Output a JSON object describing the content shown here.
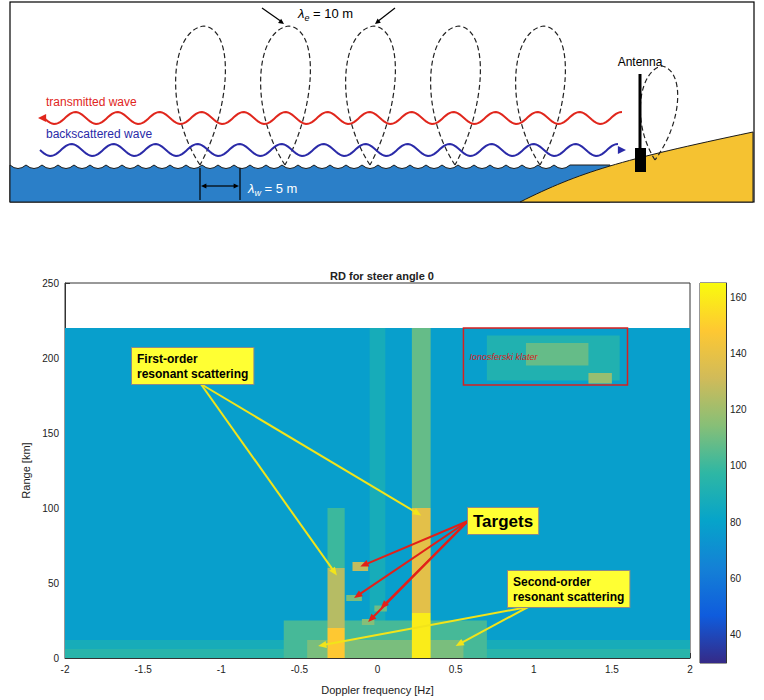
{
  "diagram": {
    "transmitted": "transmitted wave",
    "backscattered": "backscattered wave",
    "antenna": "Antenna",
    "wavelengths": [
      {
        "symbol": "λ",
        "subscript": "e",
        "operator": "=",
        "value": 10,
        "unit": "m"
      },
      {
        "symbol": "λ",
        "subscript": "w",
        "operator": "=",
        "value": 5,
        "unit": "m"
      }
    ]
  },
  "chart_data": {
    "type": "heatmap",
    "title": "RD for steer angle 0",
    "x_label": "Doppler frequency [Hz]",
    "y_label": "Range [km]",
    "xlim": [
      -2,
      2
    ],
    "xticks": [
      -2,
      -1.5,
      -1,
      -0.5,
      0,
      0.5,
      1,
      1.5,
      2
    ],
    "ylim": [
      0,
      250
    ],
    "yticks": [
      0,
      50,
      100,
      150,
      200,
      250
    ],
    "grid": false,
    "colorbar": {
      "range": [
        30,
        165
      ],
      "ticks": [
        40,
        60,
        80,
        100,
        120,
        140,
        160
      ]
    },
    "cells": [
      {
        "x": [
          -2,
          2
        ],
        "y": [
          0,
          220
        ],
        "value": 78
      },
      {
        "x": [
          -2,
          2
        ],
        "y": [
          0,
          6
        ],
        "value": 95
      },
      {
        "x": [
          -2,
          2
        ],
        "y": [
          6,
          12
        ],
        "value": 88
      },
      {
        "x": [
          -0.05,
          0.05
        ],
        "y": [
          0,
          220
        ],
        "value": 88
      },
      {
        "x": [
          -0.6,
          0.7
        ],
        "y": [
          0,
          25
        ],
        "value": 102
      },
      {
        "x": [
          -0.45,
          0.55
        ],
        "y": [
          0,
          12
        ],
        "value": 112
      },
      {
        "x": [
          0.22,
          0.34
        ],
        "y": [
          100,
          220
        ],
        "value": 108
      },
      {
        "x": [
          0.22,
          0.34
        ],
        "y": [
          30,
          100
        ],
        "value": 138
      },
      {
        "x": [
          0.22,
          0.34
        ],
        "y": [
          0,
          30
        ],
        "value": 160
      },
      {
        "x": [
          -0.32,
          -0.21
        ],
        "y": [
          60,
          100
        ],
        "value": 100
      },
      {
        "x": [
          -0.32,
          -0.21
        ],
        "y": [
          20,
          60
        ],
        "value": 125
      },
      {
        "x": [
          -0.32,
          -0.21
        ],
        "y": [
          0,
          20
        ],
        "value": 148
      },
      {
        "x": [
          -0.16,
          -0.06
        ],
        "y": [
          58,
          64
        ],
        "value": 128
      },
      {
        "x": [
          -0.2,
          -0.1
        ],
        "y": [
          38,
          42
        ],
        "value": 112
      },
      {
        "x": [
          -0.02,
          0.06
        ],
        "y": [
          31,
          35
        ],
        "value": 110
      },
      {
        "x": [
          -0.1,
          -0.02
        ],
        "y": [
          22,
          26
        ],
        "value": 114
      },
      {
        "x": [
          0.7,
          1.55
        ],
        "y": [
          185,
          215
        ],
        "value": 92
      },
      {
        "x": [
          0.95,
          1.35
        ],
        "y": [
          195,
          210
        ],
        "value": 108
      },
      {
        "x": [
          1.35,
          1.5
        ],
        "y": [
          183,
          190
        ],
        "value": 118
      }
    ],
    "annotations": [
      {
        "text": "First-order resonant scattering",
        "points_to": [
          [
            -0.26,
            55
          ],
          [
            0.28,
            95
          ]
        ]
      },
      {
        "text": "Targets",
        "points_to": [
          [
            -0.11,
            61
          ],
          [
            -0.15,
            40
          ],
          [
            0.02,
            33
          ],
          [
            -0.06,
            24
          ]
        ]
      },
      {
        "text": "Second-order resonant scattering",
        "points_to": [
          [
            -0.38,
            8
          ],
          [
            0.5,
            8
          ]
        ]
      },
      {
        "text": "Ionosferski klater",
        "box": {
          "x": [
            0.55,
            1.6
          ],
          "y": [
            182,
            220
          ]
        }
      }
    ]
  }
}
